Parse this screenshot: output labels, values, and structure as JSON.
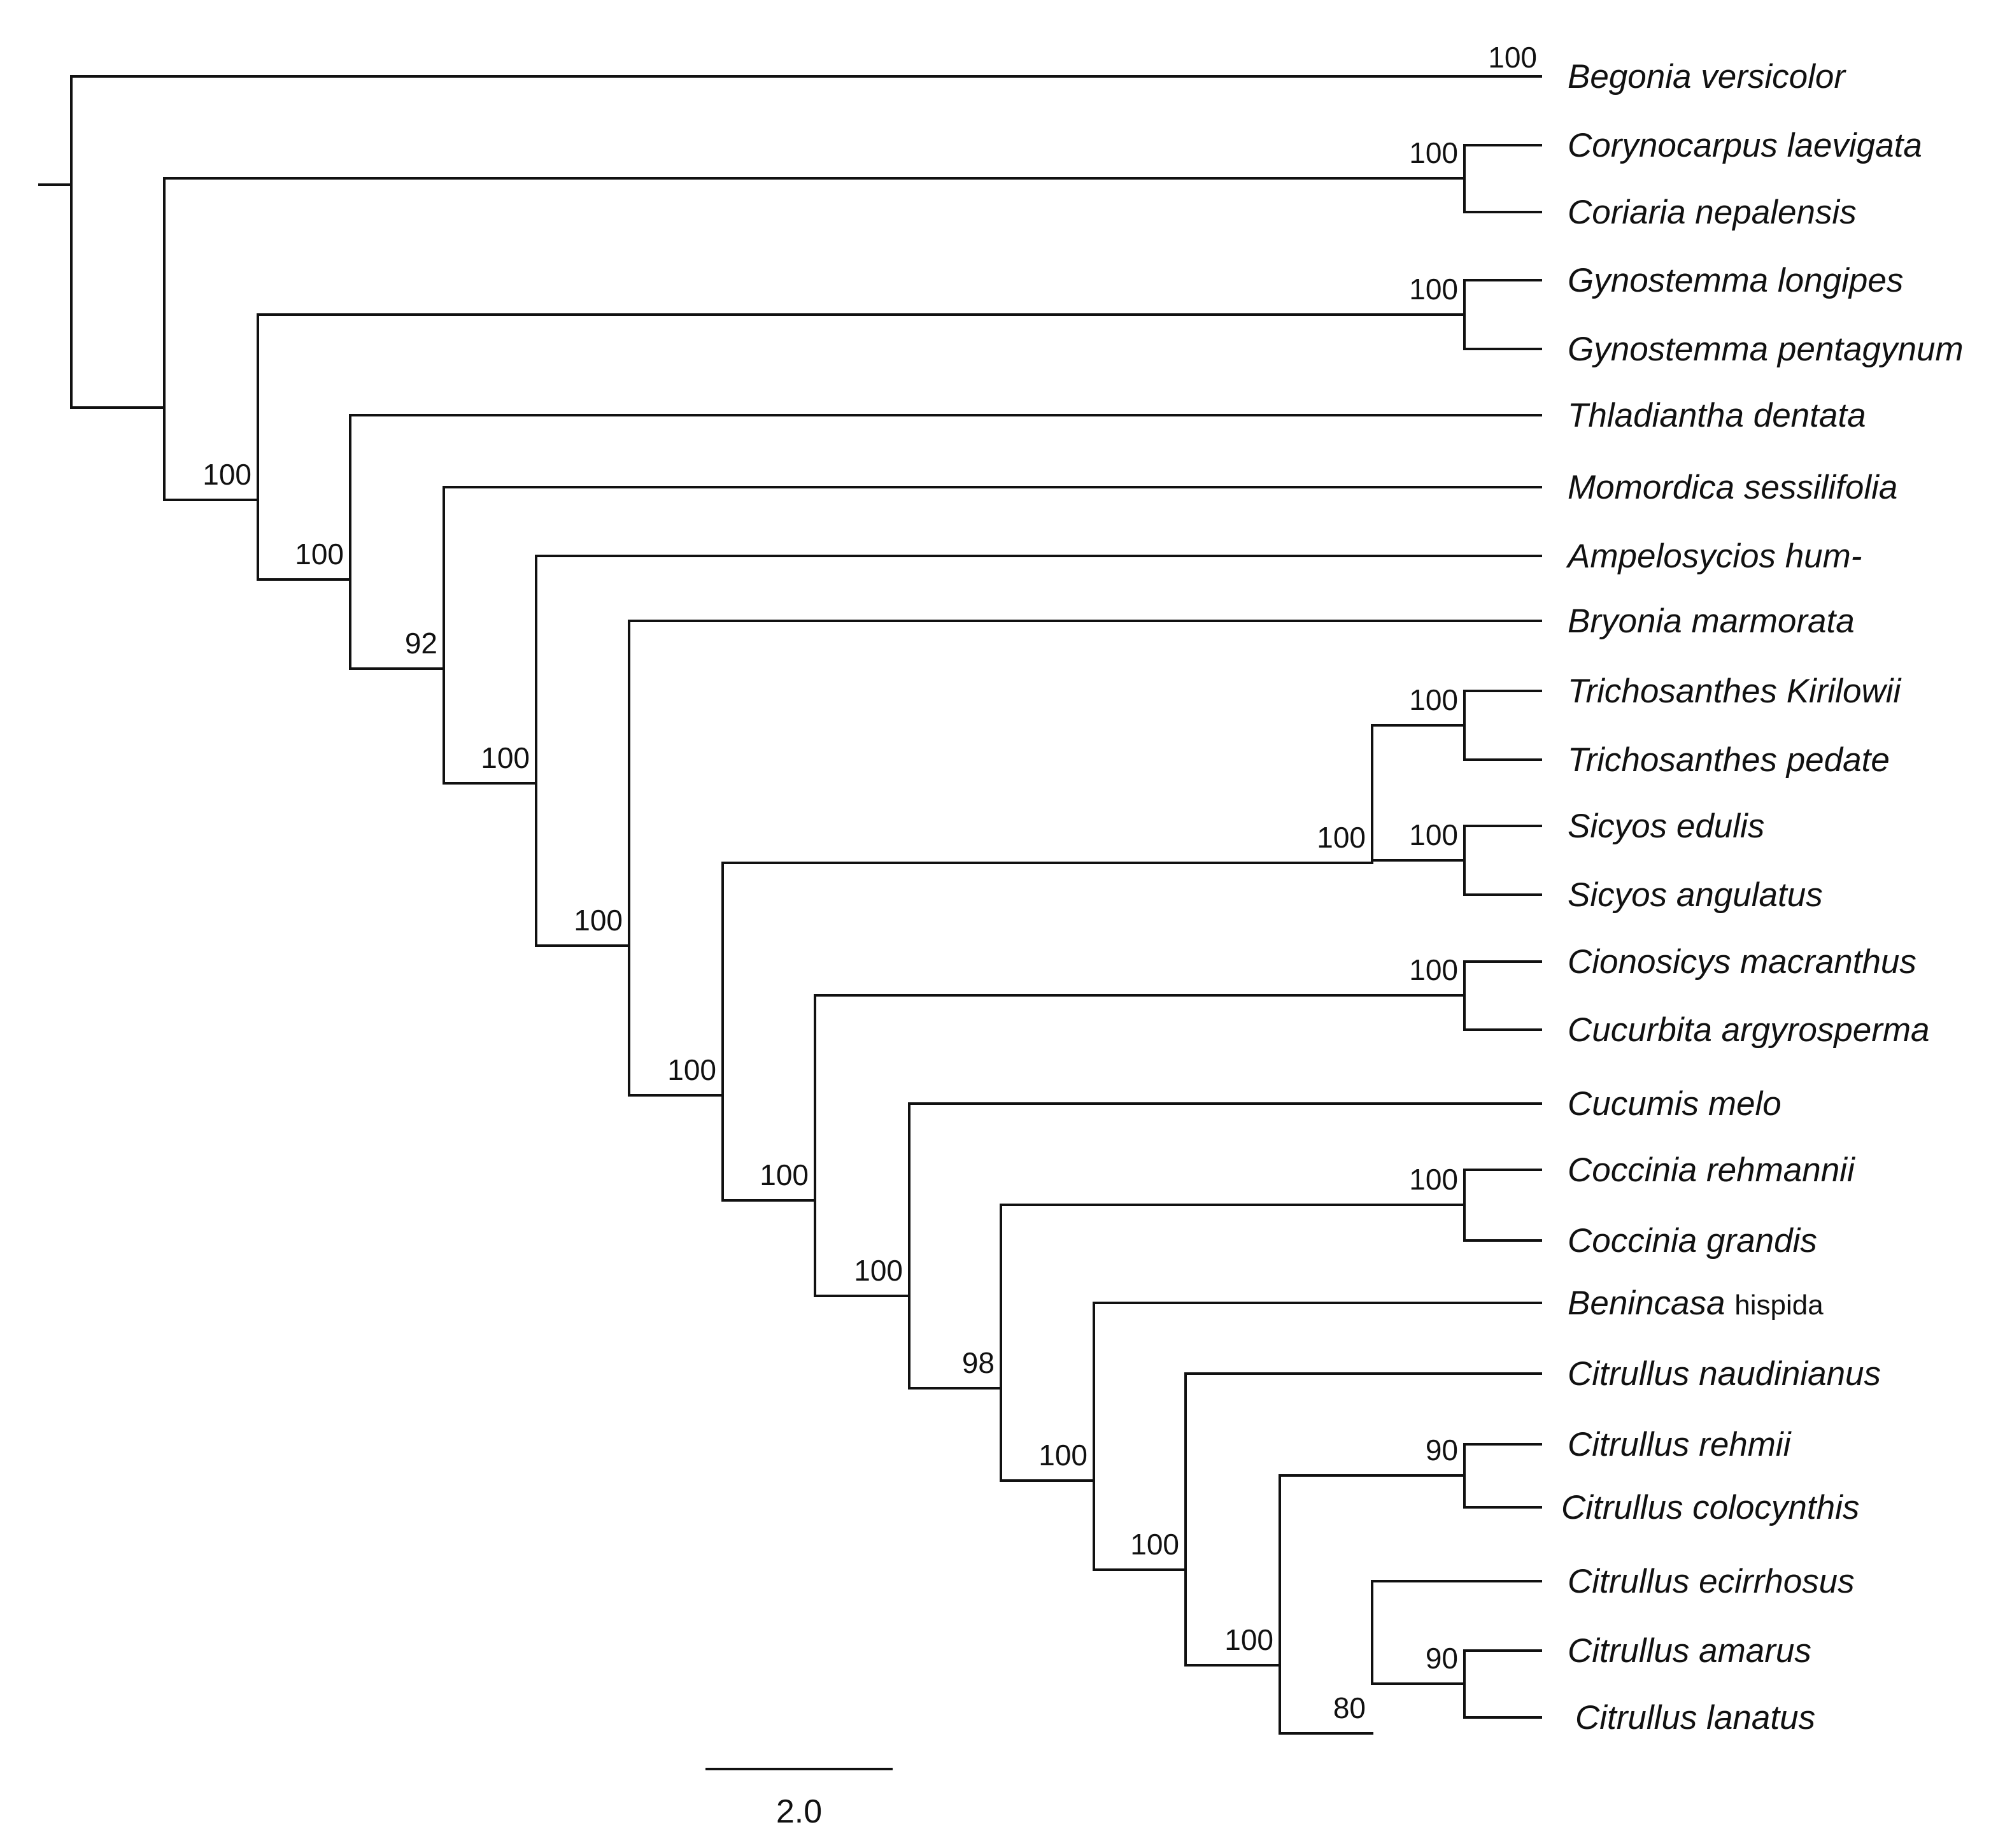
{
  "figure": {
    "type": "phylogenetic tree",
    "scale_bar_label": "2.0"
  },
  "taxa": [
    {
      "id": "t1",
      "genus": "Begonia",
      "epithet": "versicolor"
    },
    {
      "id": "t2",
      "genus": "Corynocarpus",
      "epithet": "laevigata"
    },
    {
      "id": "t3",
      "genus": "Coriaria",
      "epithet": "nepalensis"
    },
    {
      "id": "t4",
      "genus": "Gynostemma",
      "epithet": "longipes"
    },
    {
      "id": "t5",
      "genus": "Gynostemma",
      "epithet": "pentagynum"
    },
    {
      "id": "t6",
      "genus": "Thladiantha",
      "epithet": "dentata"
    },
    {
      "id": "t7",
      "genus": "Momordica",
      "epithet": "sessilifolia"
    },
    {
      "id": "t8",
      "genus": "Ampelosycios",
      "epithet": " hum-"
    },
    {
      "id": "t9",
      "genus": "Bryonia",
      "epithet": "marmorata"
    },
    {
      "id": "t10",
      "genus": "Trichosanthes",
      "epithet": "Kirilowii"
    },
    {
      "id": "t11",
      "genus": "Trichosanthes",
      "epithet": "pedate"
    },
    {
      "id": "t12",
      "genus": "Sicyos",
      "epithet": "edulis"
    },
    {
      "id": "t13",
      "genus": "Sicyos",
      "epithet": "angulatus"
    },
    {
      "id": "t14",
      "genus": "Cionosicys",
      "epithet": "macranthus"
    },
    {
      "id": "t15",
      "genus": "Cucurbita",
      "epithet": "argyrosperma"
    },
    {
      "id": "t16",
      "genus": "Cucumis",
      "epithet": "melo"
    },
    {
      "id": "t17",
      "genus": "Coccinia",
      "epithet": "rehmannii"
    },
    {
      "id": "t18",
      "genus": "Coccinia",
      "epithet": "grandis"
    },
    {
      "id": "t19",
      "genus": "Benincasa",
      "epithet": "hispida"
    },
    {
      "id": "t20",
      "genus": "Citrullus",
      "epithet": "naudinianus"
    },
    {
      "id": "t21",
      "genus": "Citrullus",
      "epithet": "rehmii"
    },
    {
      "id": "t22",
      "genus": "Citrullus",
      "epithet": "colocynthis"
    },
    {
      "id": "t23",
      "genus": "Citrullus",
      "epithet": "ecirrhosus"
    },
    {
      "id": "t24",
      "genus": "Citrullus",
      "epithet": "amarus"
    },
    {
      "id": "t25",
      "genus": "Citrullus",
      "epithet": "lanatus"
    }
  ],
  "nodes": [
    {
      "id": "root",
      "children": [
        "t1",
        "n_rest"
      ]
    },
    {
      "id": "n_cc",
      "support": "100",
      "children": [
        "t2",
        "t3"
      ]
    },
    {
      "id": "n_rest",
      "children": [
        "n_cc",
        "n_cucurb"
      ]
    },
    {
      "id": "n_gyn",
      "support": "100",
      "children": [
        "t4",
        "t5"
      ]
    },
    {
      "id": "n_cucurb",
      "support": "100",
      "children": [
        "n_gyn",
        "n_a"
      ]
    },
    {
      "id": "n_a",
      "support": "100",
      "children": [
        "t6",
        "n_b"
      ]
    },
    {
      "id": "n_b",
      "support": "92",
      "children": [
        "t7",
        "n_c"
      ]
    },
    {
      "id": "n_c",
      "support": "100",
      "children": [
        "t8",
        "n_d"
      ]
    },
    {
      "id": "n_d",
      "support": "100",
      "children": [
        "t9",
        "n_e"
      ]
    },
    {
      "id": "n_e",
      "support": "100",
      "children": [
        "n_tsicy",
        "n_f"
      ]
    },
    {
      "id": "n_tsicy",
      "support": "100",
      "children": [
        "n_tri",
        "n_sic"
      ]
    },
    {
      "id": "n_tri",
      "support": "100",
      "children": [
        "t10",
        "t11"
      ]
    },
    {
      "id": "n_sic",
      "support": "100",
      "children": [
        "t12",
        "t13"
      ]
    },
    {
      "id": "n_f",
      "support": "100",
      "children": [
        "n_cc2",
        "n_g"
      ]
    },
    {
      "id": "n_cc2",
      "support": "100",
      "children": [
        "t14",
        "t15"
      ]
    },
    {
      "id": "n_g",
      "support": "100",
      "children": [
        "t16",
        "n_h"
      ]
    },
    {
      "id": "n_h",
      "support": "98",
      "children": [
        "n_cocc",
        "n_i"
      ]
    },
    {
      "id": "n_cocc",
      "support": "100",
      "children": [
        "t17",
        "t18"
      ]
    },
    {
      "id": "n_i",
      "support": "100",
      "children": [
        "t19",
        "n_j"
      ]
    },
    {
      "id": "n_j",
      "support": "100",
      "children": [
        "t20",
        "n_k"
      ]
    },
    {
      "id": "n_k",
      "support": "100",
      "children": [
        "n_rc",
        "n_l"
      ]
    },
    {
      "id": "n_rc",
      "support": "90",
      "children": [
        "t21",
        "t22"
      ]
    },
    {
      "id": "n_l",
      "support": "80",
      "children": [
        "t23",
        "n_m"
      ]
    },
    {
      "id": "n_m",
      "support": "90",
      "children": [
        "t24",
        "t25"
      ]
    }
  ],
  "tip_support": [
    {
      "taxon": "t1",
      "support": "100"
    }
  ]
}
